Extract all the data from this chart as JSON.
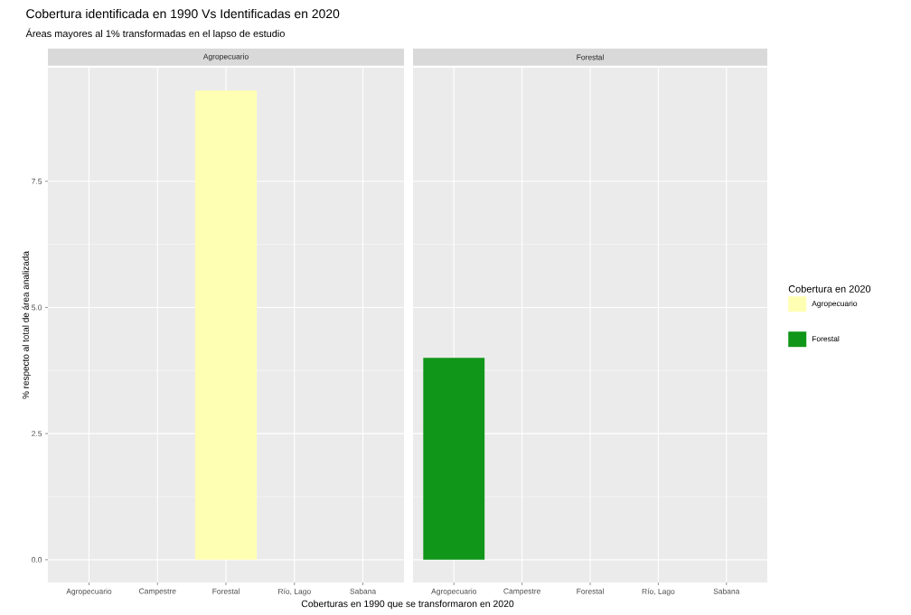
{
  "chart_data": [
    {
      "type": "bar",
      "title": "Cobertura identificada en 1990 Vs Identificadas en 2020",
      "subtitle": "Áreas mayores al 1% transformadas en el lapso de estudio",
      "annotations": [
        "Agropecuario"
      ],
      "xlabel": "Coberturas en 1990 que se transformaron en 2020",
      "ylabel": "% respecto al total de área analizada",
      "legend_title": "Cobertura en 2020",
      "categories": [
        "Agropecuario",
        "Campestre",
        "Forestal",
        "Río, Lago",
        "Sabana"
      ],
      "series": [
        {
          "name": "Agropecuario",
          "color": "#ffffb3",
          "values": [
            null,
            null,
            9.3,
            null,
            null
          ]
        }
      ],
      "ylim": [
        -0.45,
        9.75
      ],
      "yticks": [
        {
          "value": 0,
          "label": "0.0"
        },
        {
          "value": 2.5,
          "label": "2.5"
        },
        {
          "value": 5,
          "label": "5.0"
        },
        {
          "value": 7.5,
          "label": "7.5"
        }
      ],
      "grid": true,
      "legend": "right"
    },
    {
      "type": "bar",
      "annotations": [
        "Forestal"
      ],
      "categories": [
        "Agropecuario",
        "Campestre",
        "Forestal",
        "Río, Lago",
        "Sabana"
      ],
      "series": [
        {
          "name": "Forestal",
          "color": "#109618",
          "values": [
            4.0,
            null,
            null,
            null,
            null
          ]
        }
      ],
      "ylim": [
        -0.45,
        9.75
      ],
      "yticks": [
        0,
        2.5,
        5,
        7.5
      ],
      "grid": true,
      "legend": "right",
      "tick_labels": "x"
    }
  ]
}
